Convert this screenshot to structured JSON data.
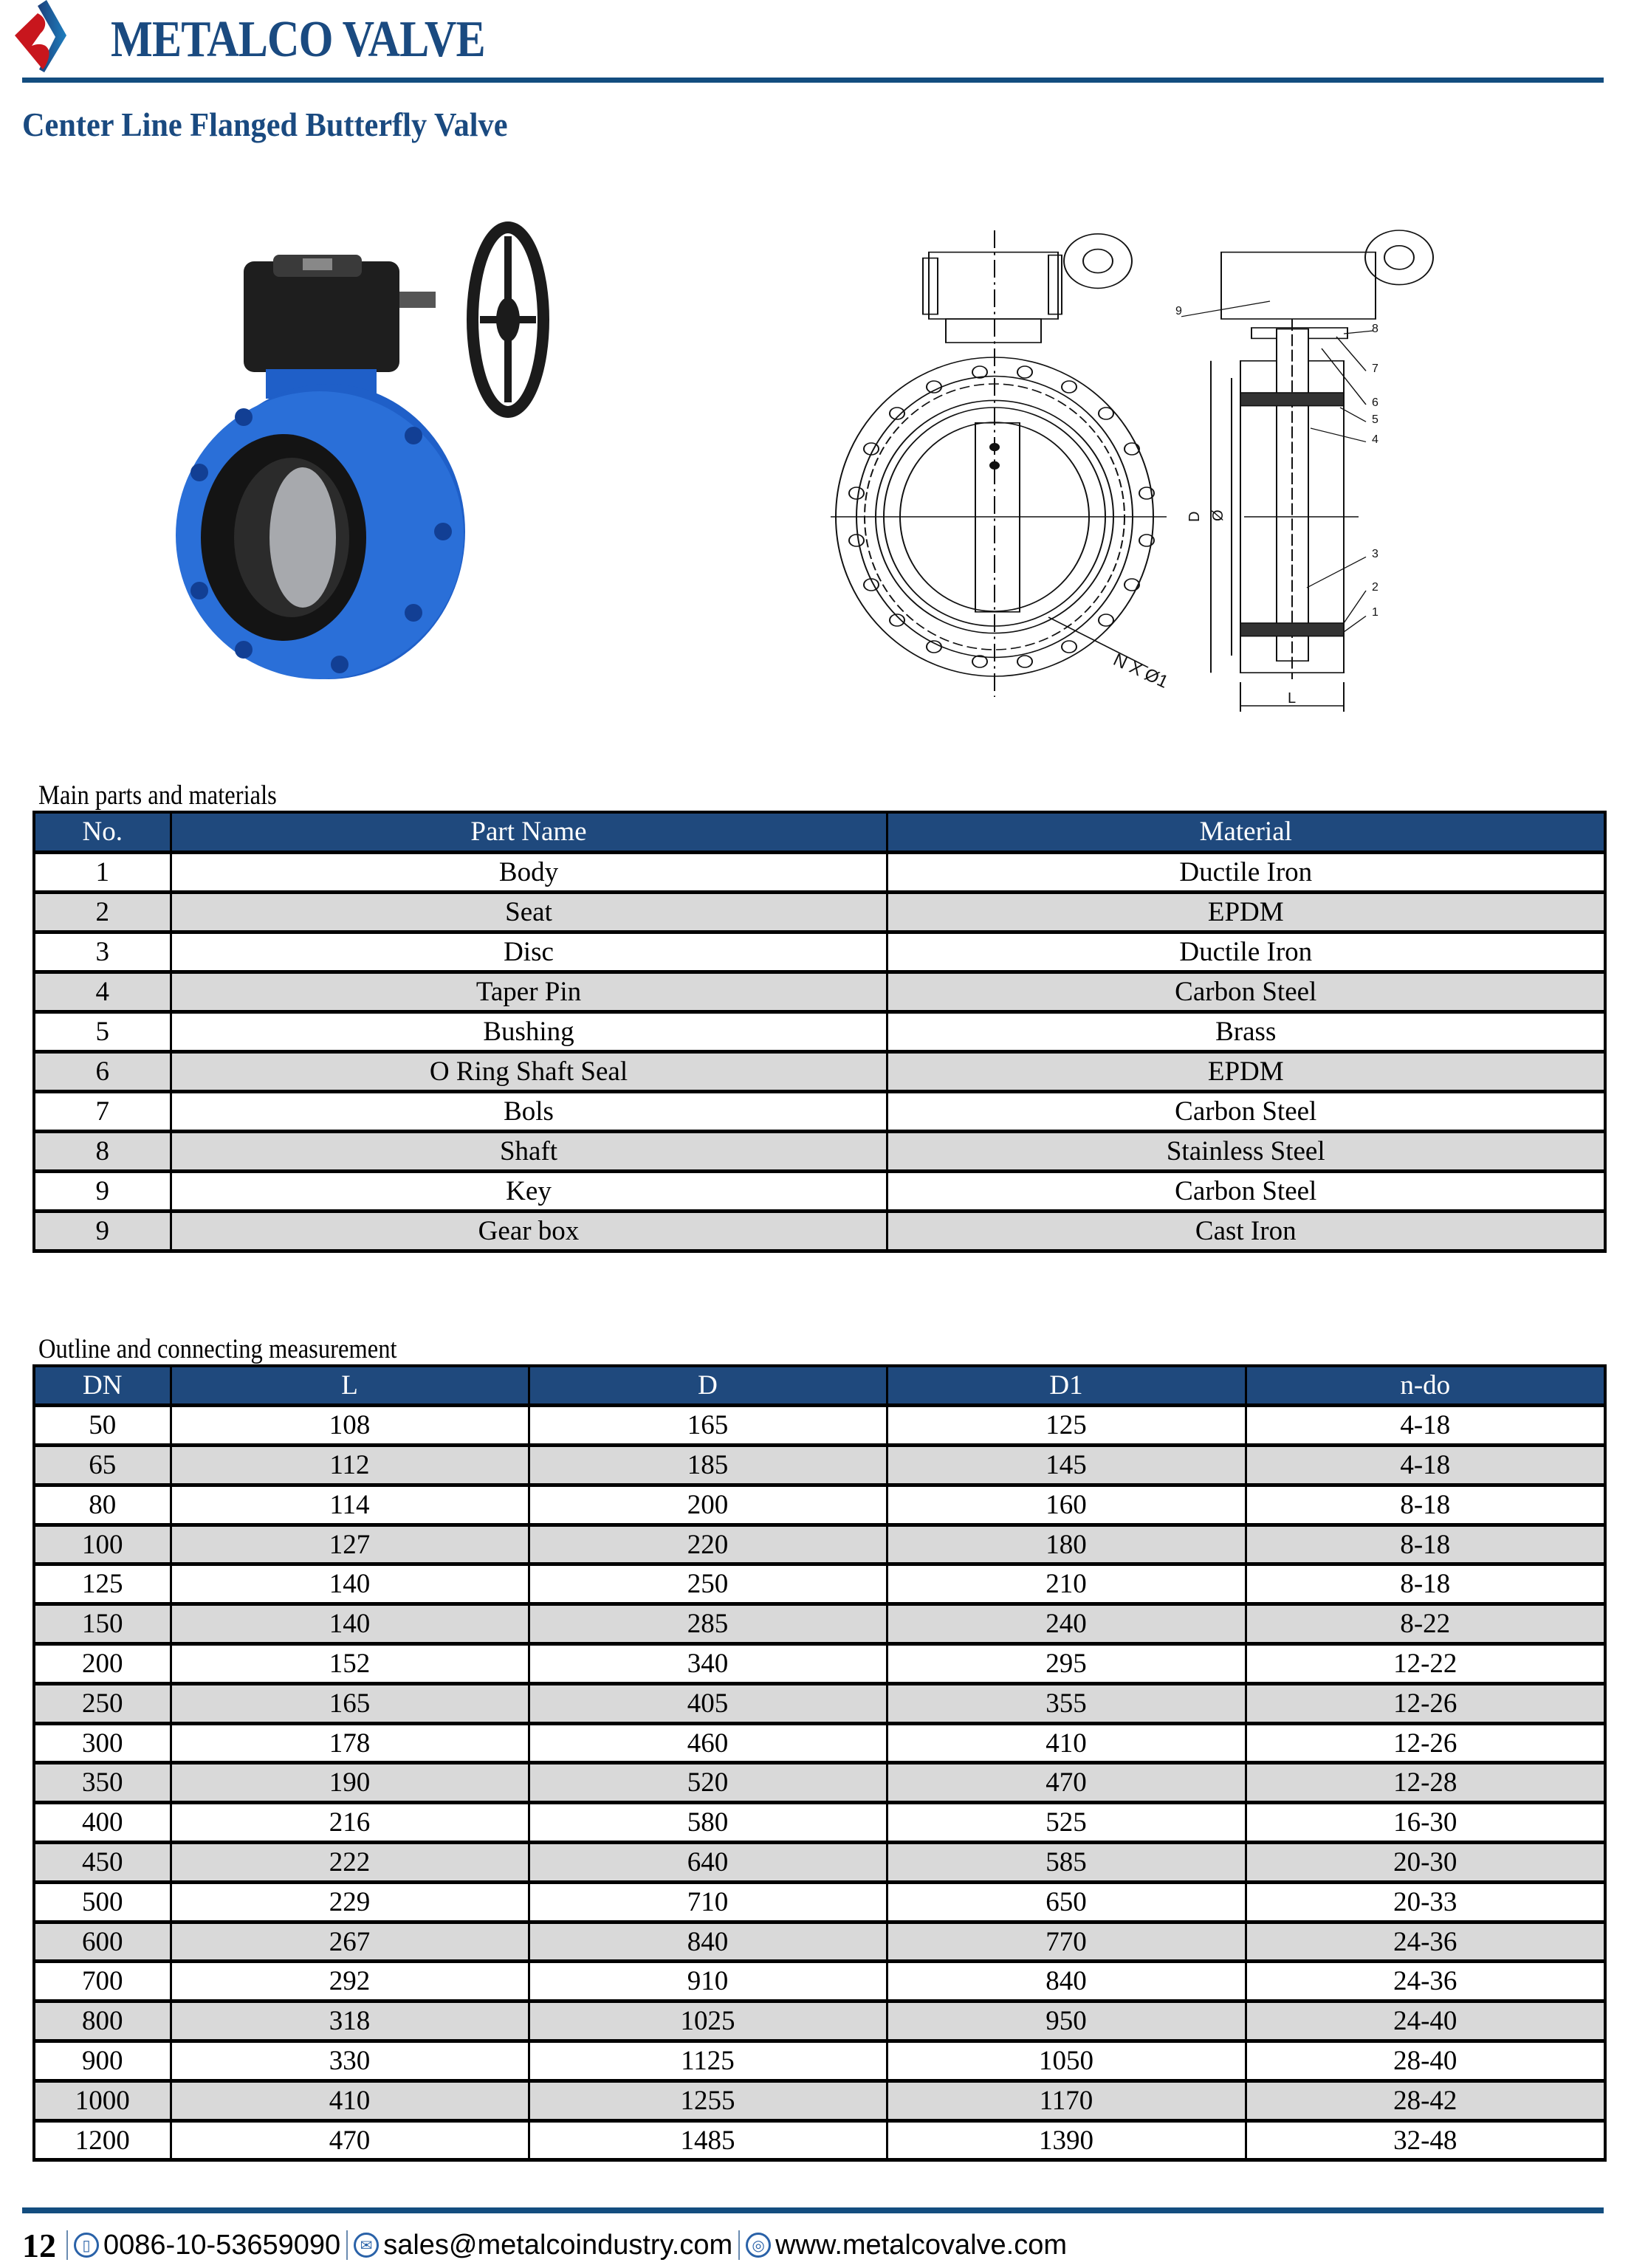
{
  "header": {
    "brand": "METALCO VALVE",
    "title": "Center Line Flanged Butterfly Valve",
    "colors": {
      "brand_blue": "#1a4a80",
      "logo_red": "#c8161d",
      "rule": "#134d7f"
    }
  },
  "drawing": {
    "callouts": [
      "1",
      "2",
      "3",
      "4",
      "5",
      "6",
      "7",
      "8",
      "9"
    ],
    "dimension_labels": {
      "outer": "D",
      "bolt_circle": "Ø",
      "length": "L",
      "holes": "N X Ø1"
    }
  },
  "parts": {
    "caption": "Main parts and materials",
    "columns": [
      "No.",
      "Part Name",
      "Material"
    ],
    "rows": [
      [
        "1",
        "Body",
        "Ductile Iron"
      ],
      [
        "2",
        "Seat",
        "EPDM"
      ],
      [
        "3",
        "Disc",
        "Ductile Iron"
      ],
      [
        "4",
        "Taper Pin",
        "Carbon Steel"
      ],
      [
        "5",
        "Bushing",
        "Brass"
      ],
      [
        "6",
        "O Ring Shaft Seal",
        "EPDM"
      ],
      [
        "7",
        "Bols",
        "Carbon Steel"
      ],
      [
        "8",
        "Shaft",
        "Stainless Steel"
      ],
      [
        "9",
        "Key",
        "Carbon Steel"
      ],
      [
        "9",
        "Gear box",
        "Cast Iron"
      ]
    ]
  },
  "dimensions": {
    "caption": "Outline and connecting measurement",
    "columns": [
      "DN",
      "L",
      "D",
      "D1",
      "n-do"
    ],
    "rows": [
      [
        "50",
        "108",
        "165",
        "125",
        "4-18"
      ],
      [
        "65",
        "112",
        "185",
        "145",
        "4-18"
      ],
      [
        "80",
        "114",
        "200",
        "160",
        "8-18"
      ],
      [
        "100",
        "127",
        "220",
        "180",
        "8-18"
      ],
      [
        "125",
        "140",
        "250",
        "210",
        "8-18"
      ],
      [
        "150",
        "140",
        "285",
        "240",
        "8-22"
      ],
      [
        "200",
        "152",
        "340",
        "295",
        "12-22"
      ],
      [
        "250",
        "165",
        "405",
        "355",
        "12-26"
      ],
      [
        "300",
        "178",
        "460",
        "410",
        "12-26"
      ],
      [
        "350",
        "190",
        "520",
        "470",
        "12-28"
      ],
      [
        "400",
        "216",
        "580",
        "525",
        "16-30"
      ],
      [
        "450",
        "222",
        "640",
        "585",
        "20-30"
      ],
      [
        "500",
        "229",
        "710",
        "650",
        "20-33"
      ],
      [
        "600",
        "267",
        "840",
        "770",
        "24-36"
      ],
      [
        "700",
        "292",
        "910",
        "840",
        "24-36"
      ],
      [
        "800",
        "318",
        "1025",
        "950",
        "24-40"
      ],
      [
        "900",
        "330",
        "1125",
        "1050",
        "28-40"
      ],
      [
        "1000",
        "410",
        "1255",
        "1170",
        "28-42"
      ],
      [
        "1200",
        "470",
        "1485",
        "1390",
        "32-48"
      ]
    ]
  },
  "footer": {
    "page_number": "12",
    "phone": "0086-10-53659090",
    "email": "sales@metalcoindustry.com",
    "website": "www.metalcovalve.com",
    "icons": [
      "phone-icon",
      "email-icon",
      "globe-icon"
    ]
  },
  "table_colors": {
    "header_bg": "#1f497d",
    "alt_row_bg": "#d9d9d9"
  }
}
